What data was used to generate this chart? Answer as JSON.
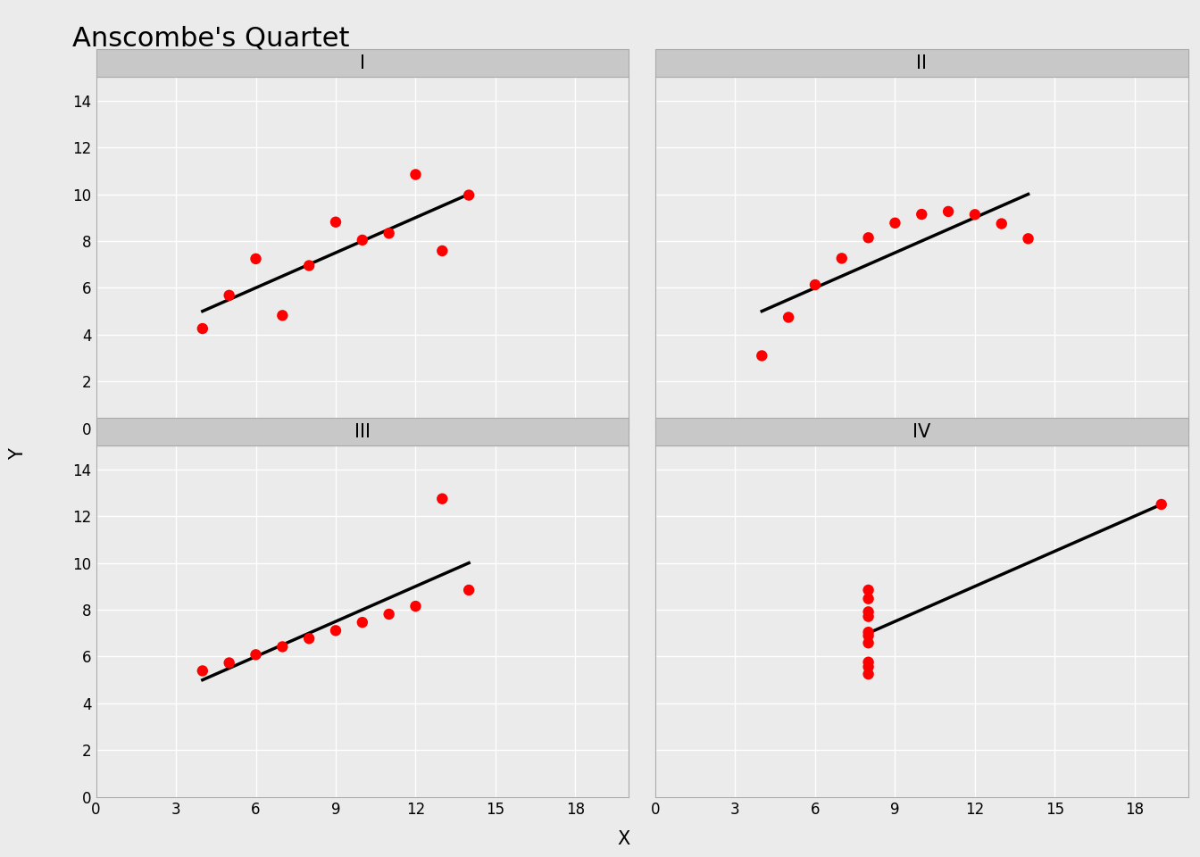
{
  "title": "Anscombe's Quartet",
  "xlabel": "X",
  "ylabel": "Y",
  "group_labels": [
    "I",
    "II",
    "III",
    "IV"
  ],
  "datasets": {
    "I": {
      "x": [
        10,
        8,
        13,
        9,
        11,
        14,
        6,
        4,
        12,
        7,
        5
      ],
      "y": [
        8.04,
        6.95,
        7.58,
        8.81,
        8.33,
        9.96,
        7.24,
        4.26,
        10.84,
        4.82,
        5.68
      ]
    },
    "II": {
      "x": [
        10,
        8,
        13,
        9,
        11,
        14,
        6,
        4,
        12,
        7,
        5
      ],
      "y": [
        9.14,
        8.14,
        8.74,
        8.77,
        9.26,
        8.1,
        6.13,
        3.1,
        9.13,
        7.26,
        4.74
      ]
    },
    "III": {
      "x": [
        10,
        8,
        13,
        9,
        11,
        14,
        6,
        4,
        12,
        7,
        5
      ],
      "y": [
        7.46,
        6.77,
        12.74,
        7.11,
        7.81,
        8.84,
        6.08,
        5.39,
        8.15,
        6.42,
        5.73
      ]
    },
    "IV": {
      "x": [
        8,
        8,
        8,
        8,
        8,
        8,
        8,
        19,
        8,
        8,
        8
      ],
      "y": [
        6.58,
        5.76,
        7.71,
        8.84,
        8.47,
        7.04,
        5.25,
        12.5,
        5.56,
        7.91,
        6.89
      ]
    }
  },
  "dot_color": "#ff0000",
  "dot_size": 80,
  "line_color": "#000000",
  "line_width": 2.5,
  "plot_bg": "#ebebeb",
  "grid_color": "#ffffff",
  "header_bg": "#c8c8c8",
  "fig_bg": "#ebebeb",
  "xlim": [
    0,
    20
  ],
  "ylim": [
    0,
    15
  ],
  "xticks": [
    0,
    3,
    6,
    9,
    12,
    15,
    18
  ],
  "yticks": [
    0,
    2,
    4,
    6,
    8,
    10,
    12,
    14
  ],
  "title_fontsize": 22,
  "label_fontsize": 15,
  "tick_fontsize": 12,
  "panel_label_fontsize": 15
}
